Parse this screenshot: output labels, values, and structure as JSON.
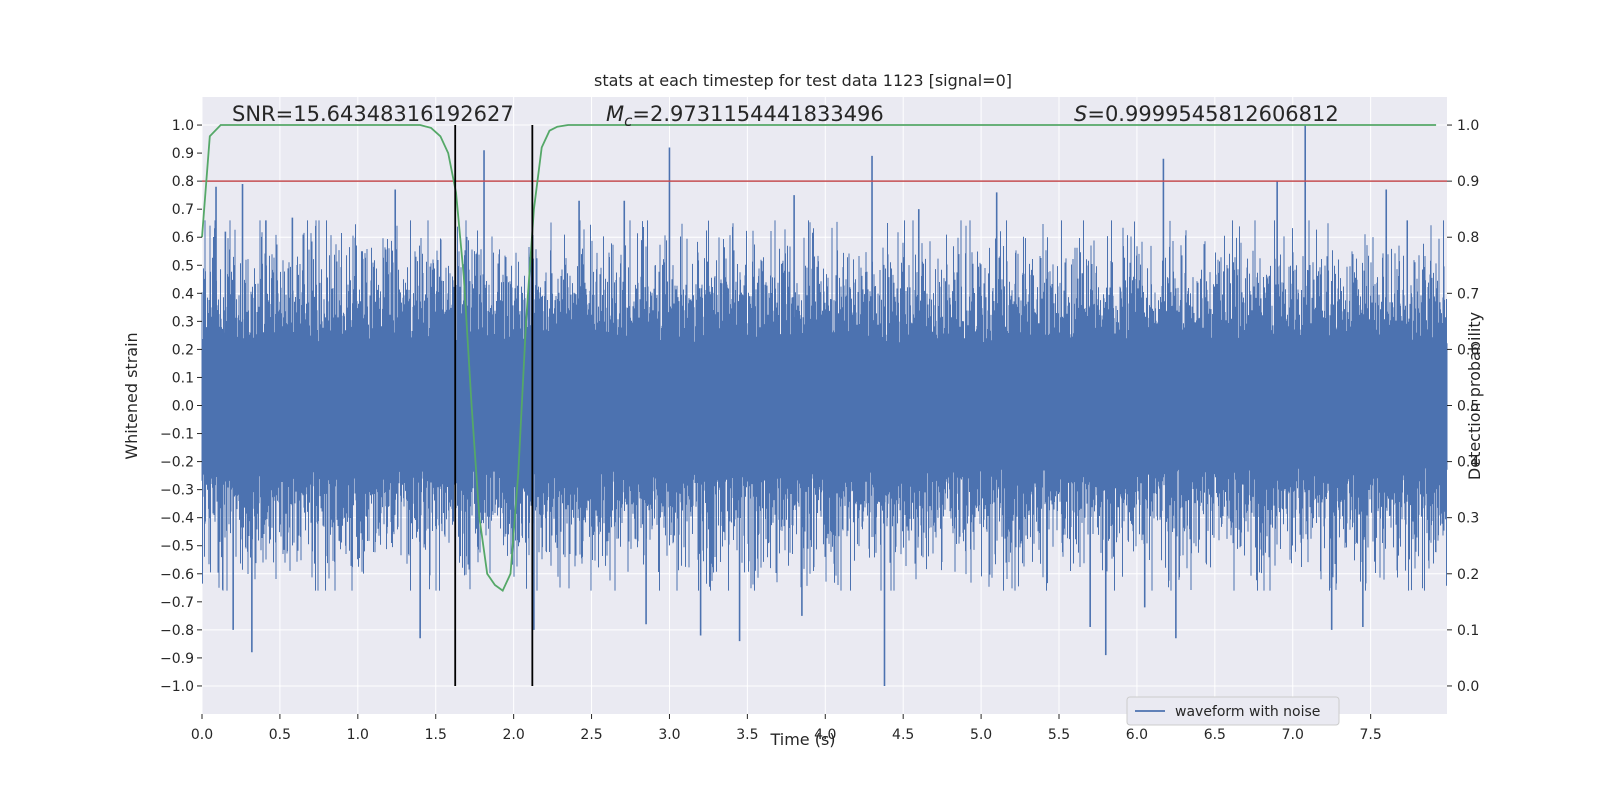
{
  "chart_data": {
    "type": "line",
    "title": "stats at each timestep for test data 1123 [signal=0]",
    "xlabel": "Time (s)",
    "ylabel": "Whitened strain",
    "y2label": "Detection probability",
    "xlim": [
      0.0,
      7.99
    ],
    "ylim": [
      -1.1,
      1.1
    ],
    "y2lim": [
      -0.05,
      1.05
    ],
    "xticks": [
      "0.0",
      "0.5",
      "1.0",
      "1.5",
      "2.0",
      "2.5",
      "3.0",
      "3.5",
      "4.0",
      "4.5",
      "5.0",
      "5.5",
      "6.0",
      "6.5",
      "7.0",
      "7.5"
    ],
    "yticks": [
      "−1.0",
      "−0.9",
      "−0.8",
      "−0.7",
      "−0.6",
      "−0.5",
      "−0.4",
      "−0.3",
      "−0.2",
      "−0.1",
      "0.0",
      "0.1",
      "0.2",
      "0.3",
      "0.4",
      "0.5",
      "0.6",
      "0.7",
      "0.8",
      "0.9",
      "1.0"
    ],
    "y2ticks": [
      "0.0",
      "0.1",
      "0.2",
      "0.3",
      "0.4",
      "0.5",
      "0.6",
      "0.7",
      "0.8",
      "0.9",
      "1.0"
    ],
    "grid": true,
    "legend_placement": "lower-center-right",
    "annotations": {
      "snr": "SNR=15.64348316192627",
      "mc_symbol": "M",
      "mc_sub": "c",
      "mc_value": "=2.9731154441833496",
      "s_symbol": "S",
      "s_value": "=0.9999545812606812"
    },
    "series": [
      {
        "name": "waveform with noise",
        "axis": "left",
        "color": "#4c72b0",
        "kind": "noise",
        "x_range": [
          0.0,
          7.99
        ],
        "y_min": -1.0,
        "y_max": 1.0
      },
      {
        "axis": "right",
        "color": "#55a868",
        "x": [
          0.0,
          0.05,
          0.12,
          0.3,
          0.6,
          1.0,
          1.4,
          1.47,
          1.53,
          1.58,
          1.63,
          1.68,
          1.73,
          1.78,
          1.83,
          1.88,
          1.93,
          1.98,
          2.03,
          2.08,
          2.13,
          2.18,
          2.23,
          2.28,
          2.35,
          2.6,
          3.5,
          5.0,
          6.5,
          7.92
        ],
        "y": [
          0.8,
          0.98,
          1.0,
          1.0,
          1.0,
          1.0,
          1.0,
          0.995,
          0.98,
          0.95,
          0.88,
          0.73,
          0.5,
          0.3,
          0.2,
          0.18,
          0.17,
          0.2,
          0.38,
          0.65,
          0.85,
          0.96,
          0.99,
          0.997,
          1.0,
          1.0,
          1.0,
          1.0,
          1.0,
          1.0
        ]
      }
    ],
    "threshold": {
      "axis": "right",
      "value": 0.9,
      "color": "#c44e52"
    },
    "vlines": [
      {
        "x": 1.625,
        "ymin": -1.0,
        "ymax": 1.0,
        "color": "#000000"
      },
      {
        "x": 2.12,
        "ymin": -1.0,
        "ymax": 1.0,
        "color": "#000000"
      }
    ],
    "spikes": [
      {
        "x": 0.09,
        "y": 0.78
      },
      {
        "x": 0.15,
        "y": 0.62
      },
      {
        "x": 0.26,
        "y": 0.79
      },
      {
        "x": 0.41,
        "y": 0.66
      },
      {
        "x": 0.58,
        "y": 0.67
      },
      {
        "x": 1.24,
        "y": 0.77
      },
      {
        "x": 1.81,
        "y": 0.91
      },
      {
        "x": 2.42,
        "y": 0.73
      },
      {
        "x": 2.71,
        "y": 0.73
      },
      {
        "x": 3.0,
        "y": 0.92
      },
      {
        "x": 3.8,
        "y": 0.75
      },
      {
        "x": 4.3,
        "y": 0.89
      },
      {
        "x": 4.6,
        "y": 0.7
      },
      {
        "x": 5.1,
        "y": 0.76
      },
      {
        "x": 6.17,
        "y": 0.88
      },
      {
        "x": 6.9,
        "y": 0.8
      },
      {
        "x": 7.08,
        "y": 1.0
      },
      {
        "x": 7.6,
        "y": 0.77
      },
      {
        "x": 0.32,
        "y": -0.88
      },
      {
        "x": 0.2,
        "y": -0.8
      },
      {
        "x": 1.4,
        "y": -0.83
      },
      {
        "x": 2.13,
        "y": -0.8
      },
      {
        "x": 2.85,
        "y": -0.78
      },
      {
        "x": 3.2,
        "y": -0.82
      },
      {
        "x": 3.45,
        "y": -0.84
      },
      {
        "x": 3.85,
        "y": -0.75
      },
      {
        "x": 4.38,
        "y": -1.0
      },
      {
        "x": 5.7,
        "y": -0.79
      },
      {
        "x": 5.8,
        "y": -0.89
      },
      {
        "x": 6.25,
        "y": -0.83
      },
      {
        "x": 7.25,
        "y": -0.8
      },
      {
        "x": 7.45,
        "y": -0.79
      },
      {
        "x": 6.05,
        "y": -0.72
      }
    ]
  }
}
